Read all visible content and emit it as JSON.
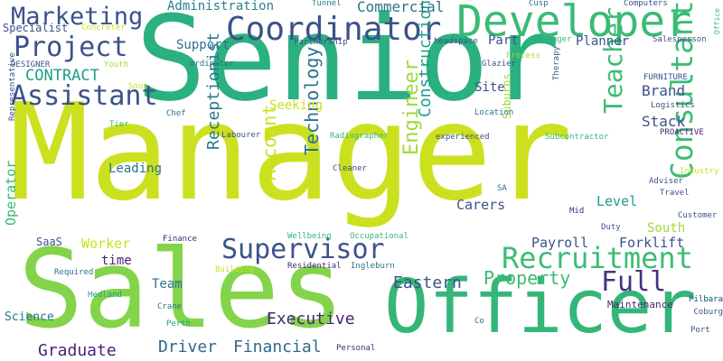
{
  "words": [
    {
      "text": "Manager",
      "color": "#cbe11f"
    },
    {
      "text": "Senior",
      "color": "#2bb07f"
    },
    {
      "text": "Sales",
      "color": "#84d44b"
    },
    {
      "text": "Officer",
      "color": "#34b679"
    },
    {
      "text": "Developer",
      "color": "#3bbb75"
    },
    {
      "text": "Coordinator",
      "color": "#3b518b"
    },
    {
      "text": "Consultant",
      "color": "#3dbc74"
    },
    {
      "text": "Recruitment",
      "color": "#3dbc74"
    },
    {
      "text": "Assistant",
      "color": "#3b528b"
    },
    {
      "text": "Project",
      "color": "#3b528b"
    },
    {
      "text": "Supervisor",
      "color": "#3b528b"
    },
    {
      "text": "Marketing",
      "color": "#3b528b"
    },
    {
      "text": "Teacher",
      "color": "#3dbc74"
    },
    {
      "text": "Full",
      "color": "#46337f"
    },
    {
      "text": "Property",
      "color": "#3dbc74"
    },
    {
      "text": "Engineer",
      "color": "#9fda3a"
    },
    {
      "text": "Technology",
      "color": "#2c728e"
    },
    {
      "text": "Construction",
      "color": "#1f9e89"
    },
    {
      "text": "Receptionist",
      "color": "#29798e"
    },
    {
      "text": "Account",
      "color": "#cbe11f"
    },
    {
      "text": "Executive",
      "color": "#482475"
    },
    {
      "text": "Financial",
      "color": "#31688e"
    },
    {
      "text": "Driver",
      "color": "#31688e"
    },
    {
      "text": "Graduate",
      "color": "#482475"
    },
    {
      "text": "Eastern",
      "color": "#3b528b"
    },
    {
      "text": "CONTRACT",
      "color": "#1f9e89"
    },
    {
      "text": "Commercial",
      "color": "#2c728e"
    },
    {
      "text": "Administration",
      "color": "#26828e"
    },
    {
      "text": "Brand",
      "color": "#3b528b"
    },
    {
      "text": "Stack",
      "color": "#3b528b"
    },
    {
      "text": "Forklift",
      "color": "#3b528b"
    },
    {
      "text": "Payroll",
      "color": "#3b528b"
    },
    {
      "text": "Seeking",
      "color": "#cbe11f"
    },
    {
      "text": "Leading",
      "color": "#2c728e"
    },
    {
      "text": "Worker",
      "color": "#cbe11f"
    },
    {
      "text": "Team",
      "color": "#2c728e"
    },
    {
      "text": "time",
      "color": "#482475"
    },
    {
      "text": "Operator",
      "color": "#35b779"
    },
    {
      "text": "Carers",
      "color": "#3b528b"
    },
    {
      "text": "Level",
      "color": "#1f9e89"
    },
    {
      "text": "South",
      "color": "#9fda3a"
    },
    {
      "text": "Support",
      "color": "#2c728e"
    },
    {
      "text": "Part",
      "color": "#3b528b"
    },
    {
      "text": "Site",
      "color": "#3b528b"
    },
    {
      "text": "Planner",
      "color": "#3b528b"
    },
    {
      "text": "Specialist",
      "color": "#3b528b"
    },
    {
      "text": "Suburbs",
      "color": "#9fda3a"
    },
    {
      "text": "Maintenance",
      "color": "#482475"
    },
    {
      "text": "Science",
      "color": "#2c728e"
    },
    {
      "text": "SaaS",
      "color": "#3b528b"
    },
    {
      "text": "Tunnel",
      "color": "#2c728e"
    },
    {
      "text": "Partnership",
      "color": "#3b528b"
    },
    {
      "text": "headspace",
      "color": "#3b528b"
    },
    {
      "text": "Rigger",
      "color": "#35b779"
    },
    {
      "text": "Glazier",
      "color": "#3b528b"
    },
    {
      "text": "Process",
      "color": "#9fda3a"
    },
    {
      "text": "Salesperson",
      "color": "#3b528b"
    },
    {
      "text": "Computers",
      "color": "#3b528b"
    },
    {
      "text": "Cusp",
      "color": "#2c728e"
    },
    {
      "text": "Office",
      "color": "#35b779"
    },
    {
      "text": "Therapy",
      "color": "#3b528b"
    },
    {
      "text": "FURNITURE",
      "color": "#3b528b"
    },
    {
      "text": "Logistics",
      "color": "#3b528b"
    },
    {
      "text": "PROACTIVE",
      "color": "#482475"
    },
    {
      "text": "Industry",
      "color": "#cbe11f"
    },
    {
      "text": "Adviser",
      "color": "#3b528b"
    },
    {
      "text": "Travel",
      "color": "#3b528b"
    },
    {
      "text": "Customer",
      "color": "#3b528b"
    },
    {
      "text": "Duty",
      "color": "#3b528b"
    },
    {
      "text": "Coburg",
      "color": "#3b528b"
    },
    {
      "text": "Pilbara",
      "color": "#2c728e"
    },
    {
      "text": "Port",
      "color": "#3b528b"
    },
    {
      "text": "Co",
      "color": "#2c728e"
    },
    {
      "text": "Personal",
      "color": "#482475"
    },
    {
      "text": "Residential",
      "color": "#482475"
    },
    {
      "text": "Ingleburn",
      "color": "#2c728e"
    },
    {
      "text": "Building",
      "color": "#cbe11f"
    },
    {
      "text": "Wellbeing",
      "color": "#35b779"
    },
    {
      "text": "Occupational",
      "color": "#35b779"
    },
    {
      "text": "Finance",
      "color": "#482475"
    },
    {
      "text": "Cleaner",
      "color": "#3b528b"
    },
    {
      "text": "Radiographer",
      "color": "#35b779"
    },
    {
      "text": "experienced",
      "color": "#3b528b"
    },
    {
      "text": "Subcontractor",
      "color": "#35b779"
    },
    {
      "text": "Location",
      "color": "#2c728e"
    },
    {
      "text": "SA",
      "color": "#2c728e"
    },
    {
      "text": "Mid",
      "color": "#482475"
    },
    {
      "text": "Labourer",
      "color": "#3b528b"
    },
    {
      "text": "Chef",
      "color": "#2c728e"
    },
    {
      "text": "Tier",
      "color": "#35b779"
    },
    {
      "text": "Sous",
      "color": "#cbe11f"
    },
    {
      "text": "Youth",
      "color": "#9fda3a"
    },
    {
      "text": "DESIGNER",
      "color": "#3b528b"
    },
    {
      "text": "Concreter",
      "color": "#cbe11f"
    },
    {
      "text": "ordinator",
      "color": "#2c728e"
    },
    {
      "text": "Representative",
      "color": "#3b528b"
    },
    {
      "text": "Required",
      "color": "#2c728e"
    },
    {
      "text": "Hedland",
      "color": "#1f9e89"
    },
    {
      "text": "Crane",
      "color": "#2c728e"
    },
    {
      "text": "Perth",
      "color": "#1f9e89"
    },
    {
      "text": "Pilbara",
      "color": "#2c728e"
    }
  ]
}
